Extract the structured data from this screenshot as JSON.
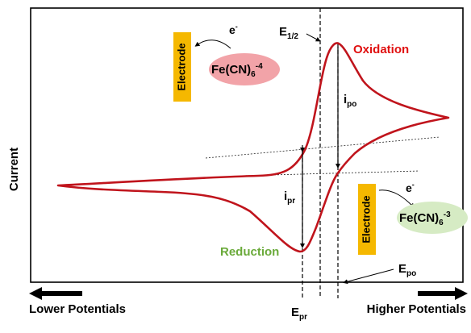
{
  "axes": {
    "ylabel": "Current",
    "x_left_label": "Lower Potentials",
    "x_right_label": "Higher Potentials"
  },
  "annotations": {
    "e_half": {
      "base": "E",
      "sub": "1/2"
    },
    "oxidation": "Oxidation",
    "reduction": "Reduction",
    "i_po": {
      "base": "i",
      "sub": "po"
    },
    "i_pr": {
      "base": "i",
      "sub": "pr"
    },
    "e_po": {
      "base": "E",
      "sub": "po"
    },
    "e_pr": {
      "base": "E",
      "sub": "pr"
    }
  },
  "electrode_top": {
    "label": "Electrode",
    "electron": "e",
    "electron_sup": "-",
    "species": {
      "base": "Fe(CN)",
      "sub": "6",
      "sup": "-4"
    }
  },
  "electrode_bottom": {
    "label": "Electrode",
    "electron": "e",
    "electron_sup": "-",
    "species": {
      "base": "Fe(CN)",
      "sub": "6",
      "sup": "-3"
    }
  },
  "colors": {
    "curve": "#c0141c",
    "oxidation_text": "#e01010",
    "reduction_text": "#6aaa3a",
    "electrode_box": "#f5b800",
    "species_top_fill": "#f2a3a8",
    "species_bottom_fill": "#d6ebc4",
    "axis": "#000000"
  }
}
